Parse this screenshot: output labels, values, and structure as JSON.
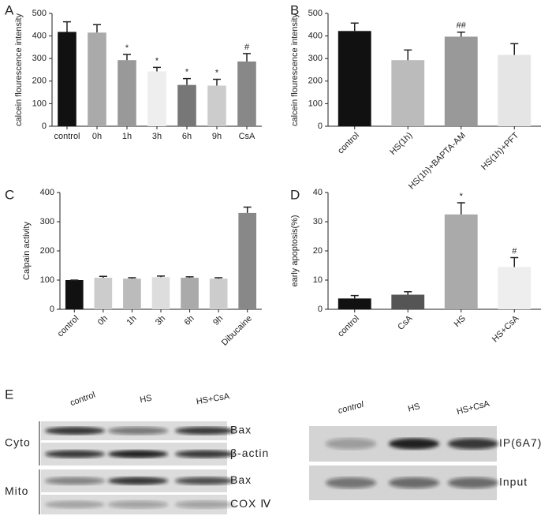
{
  "chart_data": [
    {
      "type": "bar",
      "panel": "A",
      "ylabel": "calcein flourescence intensity",
      "categories": [
        "control",
        "0h",
        "1h",
        "3h",
        "6h",
        "9h",
        "CsA"
      ],
      "values": [
        418,
        415,
        293,
        243,
        183,
        180,
        287
      ],
      "errors": [
        45,
        35,
        25,
        18,
        28,
        28,
        35
      ],
      "annotations": [
        null,
        null,
        "*",
        "*",
        "*",
        "*",
        "#"
      ],
      "colors": [
        "#111111",
        "#aaaaaa",
        "#999999",
        "#eeeeee",
        "#777777",
        "#cccccc",
        "#888888"
      ],
      "ylim": [
        0,
        500
      ],
      "yticks": [
        0,
        100,
        200,
        300,
        400,
        500
      ]
    },
    {
      "type": "bar",
      "panel": "B",
      "ylabel": "calcein flourescence intensity",
      "categories": [
        "control",
        "HS(1h)",
        "HS(1h)+BAPTA-AM",
        "HS(1h)+PFT"
      ],
      "values": [
        422,
        293,
        397,
        316
      ],
      "errors": [
        35,
        45,
        20,
        50
      ],
      "annotations": [
        null,
        null,
        "##",
        null
      ],
      "colors": [
        "#111111",
        "#bbbbbb",
        "#999999",
        "#e5e5e5"
      ],
      "ylim": [
        0,
        500
      ],
      "yticks": [
        0,
        100,
        200,
        300,
        400,
        500
      ]
    },
    {
      "type": "bar",
      "panel": "C",
      "ylabel": "Calpain activity",
      "categories": [
        "control",
        "0h",
        "1h",
        "3h",
        "6h",
        "9h",
        "Dibucaine"
      ],
      "values": [
        100,
        108,
        105,
        110,
        108,
        105,
        330
      ],
      "errors": [
        0,
        5,
        3,
        4,
        3,
        3,
        20
      ],
      "annotations": [
        null,
        null,
        null,
        null,
        null,
        null,
        null
      ],
      "colors": [
        "#111111",
        "#cccccc",
        "#bbbbbb",
        "#dddddd",
        "#aaaaaa",
        "#cccccc",
        "#888888"
      ],
      "ylim": [
        0,
        400
      ],
      "yticks": [
        0,
        100,
        200,
        300,
        400
      ]
    },
    {
      "type": "bar",
      "panel": "D",
      "ylabel": "early apoptosis(%)",
      "categories": [
        "control",
        "CsA",
        "HS",
        "HS+CsA"
      ],
      "values": [
        3.7,
        5,
        32.5,
        14.5
      ],
      "errors": [
        1,
        1,
        4,
        3.2
      ],
      "annotations": [
        null,
        null,
        "*",
        "#"
      ],
      "colors": [
        "#111111",
        "#555555",
        "#aaaaaa",
        "#eeeeee"
      ],
      "ylim": [
        0,
        40
      ],
      "yticks": [
        0,
        10,
        20,
        30,
        40
      ]
    }
  ],
  "panel_e": {
    "panel": "E",
    "left": {
      "columns": [
        "control",
        "HS",
        "HS+CsA"
      ],
      "groups": [
        "Cyto",
        "Mito"
      ],
      "rows": [
        "Bax",
        "β-actin",
        "Bax",
        "COX Ⅳ"
      ]
    },
    "right": {
      "columns": [
        "control",
        "HS",
        "HS+CsA"
      ],
      "rows": [
        "IP(6A7)",
        "Input"
      ]
    }
  }
}
